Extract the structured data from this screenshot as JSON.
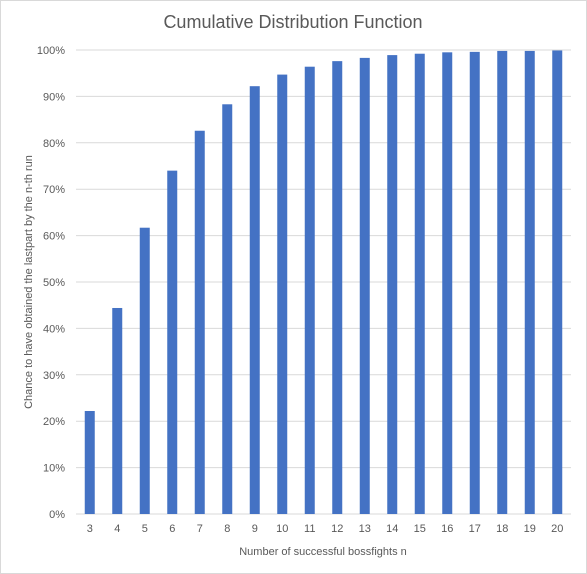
{
  "chart_data": {
    "type": "bar",
    "title": "Cumulative Distribution Function",
    "xlabel": "Number of successful bossfights n",
    "ylabel": "Chance to have obtained the lastpart by the n-th run",
    "categories": [
      "3",
      "4",
      "5",
      "6",
      "7",
      "8",
      "9",
      "10",
      "11",
      "12",
      "13",
      "14",
      "15",
      "16",
      "17",
      "18",
      "19",
      "20"
    ],
    "values": [
      22.2,
      44.4,
      61.7,
      74.0,
      82.6,
      88.3,
      92.2,
      94.7,
      96.4,
      97.6,
      98.3,
      98.9,
      99.2,
      99.5,
      99.6,
      99.8,
      99.8,
      99.9
    ],
    "ylim": [
      0,
      100
    ],
    "yticks": [
      "0%",
      "10%",
      "20%",
      "30%",
      "40%",
      "50%",
      "60%",
      "70%",
      "80%",
      "90%",
      "100%"
    ],
    "grid": true,
    "bar_color": "#4472c4"
  }
}
